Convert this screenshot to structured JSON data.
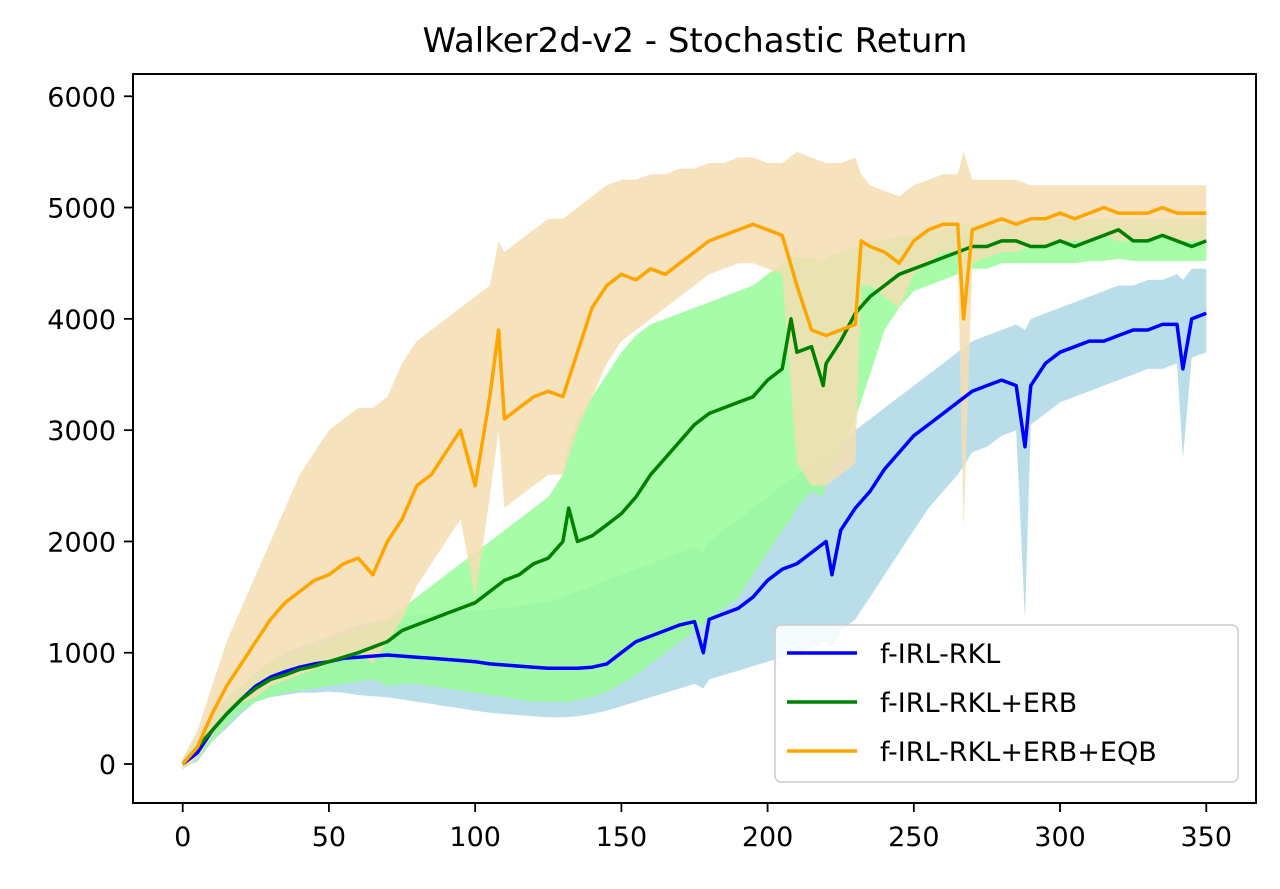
{
  "chart_data": {
    "type": "line",
    "title": "Walker2d-v2 - Stochastic Return",
    "xlabel": "",
    "ylabel": "",
    "xlim": [
      -17,
      367
    ],
    "ylim": [
      -350,
      6200
    ],
    "x_ticks": [
      0,
      50,
      100,
      150,
      200,
      250,
      300,
      350
    ],
    "x_tick_labels": [
      "0",
      "50",
      "100",
      "150",
      "200",
      "250",
      "300",
      "350"
    ],
    "y_ticks": [
      0,
      1000,
      2000,
      3000,
      4000,
      5000,
      6000
    ],
    "y_tick_labels": [
      "0",
      "1000",
      "2000",
      "3000",
      "4000",
      "5000",
      "6000"
    ],
    "grid": false,
    "legend_position": "lower-right",
    "series": [
      {
        "name": "f-IRL-RKL",
        "color": "#0000ff",
        "band_color": "#add8e6",
        "x": [
          0,
          5,
          10,
          15,
          20,
          25,
          30,
          35,
          40,
          45,
          50,
          55,
          60,
          65,
          70,
          75,
          80,
          85,
          90,
          95,
          100,
          105,
          110,
          115,
          120,
          125,
          130,
          135,
          140,
          145,
          150,
          155,
          160,
          165,
          170,
          175,
          178,
          180,
          185,
          190,
          195,
          200,
          205,
          210,
          215,
          220,
          222,
          225,
          230,
          235,
          240,
          245,
          250,
          255,
          260,
          265,
          270,
          275,
          280,
          285,
          288,
          290,
          295,
          300,
          305,
          310,
          315,
          320,
          325,
          330,
          335,
          340,
          342,
          345,
          350
        ],
        "values": [
          0,
          100,
          300,
          450,
          580,
          700,
          780,
          830,
          870,
          900,
          920,
          950,
          960,
          970,
          980,
          970,
          960,
          950,
          940,
          930,
          920,
          900,
          890,
          880,
          870,
          860,
          860,
          860,
          870,
          900,
          1000,
          1100,
          1150,
          1200,
          1250,
          1280,
          1000,
          1300,
          1350,
          1400,
          1500,
          1650,
          1750,
          1800,
          1900,
          2000,
          1700,
          2100,
          2300,
          2450,
          2650,
          2800,
          2950,
          3050,
          3150,
          3250,
          3350,
          3400,
          3450,
          3400,
          2850,
          3400,
          3600,
          3700,
          3750,
          3800,
          3800,
          3850,
          3900,
          3900,
          3950,
          3950,
          3550,
          4000,
          4050
        ],
        "lower": [
          -20,
          20,
          200,
          320,
          450,
          560,
          600,
          620,
          640,
          640,
          650,
          640,
          620,
          610,
          600,
          580,
          560,
          540,
          520,
          500,
          480,
          460,
          450,
          440,
          430,
          420,
          420,
          430,
          450,
          480,
          520,
          560,
          600,
          640,
          680,
          720,
          680,
          760,
          800,
          840,
          880,
          920,
          960,
          1000,
          1050,
          1100,
          1050,
          1200,
          1300,
          1500,
          1700,
          1900,
          2100,
          2300,
          2450,
          2600,
          2800,
          2850,
          2950,
          3000,
          1300,
          3050,
          3150,
          3250,
          3300,
          3350,
          3400,
          3450,
          3500,
          3550,
          3550,
          3600,
          2750,
          3650,
          3700
        ],
        "upper": [
          20,
          180,
          420,
          580,
          700,
          820,
          920,
          1000,
          1060,
          1100,
          1150,
          1200,
          1250,
          1280,
          1300,
          1320,
          1340,
          1350,
          1360,
          1370,
          1380,
          1390,
          1400,
          1420,
          1440,
          1460,
          1500,
          1550,
          1600,
          1650,
          1700,
          1750,
          1800,
          1850,
          1900,
          1950,
          1900,
          2000,
          2100,
          2200,
          2300,
          2400,
          2500,
          2600,
          2700,
          2800,
          2700,
          2900,
          3000,
          3100,
          3200,
          3300,
          3400,
          3500,
          3600,
          3700,
          3800,
          3850,
          3900,
          3950,
          3900,
          4000,
          4050,
          4100,
          4150,
          4200,
          4250,
          4300,
          4300,
          4350,
          4350,
          4400,
          4350,
          4450,
          4450
        ]
      },
      {
        "name": "f-IRL-RKL+ERB",
        "color": "#008000",
        "band_color": "#98fb98",
        "x": [
          0,
          5,
          10,
          15,
          20,
          25,
          30,
          35,
          40,
          45,
          50,
          55,
          60,
          65,
          70,
          75,
          80,
          85,
          90,
          95,
          100,
          105,
          110,
          115,
          120,
          125,
          130,
          132,
          135,
          140,
          145,
          150,
          155,
          160,
          165,
          170,
          175,
          180,
          185,
          190,
          195,
          200,
          205,
          208,
          210,
          215,
          219,
          220,
          225,
          230,
          235,
          240,
          245,
          250,
          255,
          260,
          265,
          270,
          275,
          280,
          285,
          290,
          295,
          300,
          305,
          310,
          315,
          320,
          325,
          330,
          335,
          340,
          345,
          350
        ],
        "values": [
          0,
          150,
          300,
          450,
          580,
          680,
          760,
          800,
          850,
          880,
          920,
          960,
          1000,
          1050,
          1100,
          1200,
          1250,
          1300,
          1350,
          1400,
          1450,
          1550,
          1650,
          1700,
          1800,
          1850,
          2000,
          2300,
          2000,
          2050,
          2150,
          2250,
          2400,
          2600,
          2750,
          2900,
          3050,
          3150,
          3200,
          3250,
          3300,
          3450,
          3550,
          4000,
          3700,
          3750,
          3400,
          3600,
          3800,
          4050,
          4200,
          4300,
          4400,
          4450,
          4500,
          4550,
          4600,
          4650,
          4650,
          4700,
          4700,
          4650,
          4650,
          4700,
          4650,
          4700,
          4750,
          4800,
          4700,
          4700,
          4750,
          4700,
          4650,
          4700
        ],
        "lower": [
          -50,
          50,
          200,
          350,
          480,
          560,
          600,
          640,
          660,
          680,
          700,
          720,
          740,
          760,
          700,
          720,
          720,
          700,
          680,
          660,
          640,
          620,
          600,
          580,
          560,
          560,
          560,
          560,
          580,
          600,
          650,
          720,
          800,
          900,
          1000,
          1100,
          1200,
          1300,
          1400,
          1500,
          1700,
          1900,
          2100,
          2200,
          2300,
          2450,
          2400,
          2550,
          2800,
          3100,
          3500,
          3900,
          4100,
          4250,
          4300,
          4350,
          4400,
          4450,
          4450,
          4500,
          4500,
          4500,
          4500,
          4500,
          4500,
          4520,
          4520,
          4540,
          4520,
          4520,
          4520,
          4520,
          4520,
          4520
        ],
        "upper": [
          50,
          250,
          450,
          600,
          700,
          800,
          900,
          950,
          1000,
          1050,
          1100,
          1150,
          1200,
          1250,
          1300,
          1400,
          1500,
          1600,
          1700,
          1800,
          1900,
          2000,
          2100,
          2200,
          2300,
          2400,
          2600,
          2900,
          3100,
          3300,
          3500,
          3700,
          3850,
          3950,
          4000,
          4050,
          4100,
          4150,
          4200,
          4250,
          4300,
          4400,
          4500,
          4550,
          4550,
          4550,
          4500,
          4550,
          4600,
          4650,
          4700,
          4700,
          4750,
          4750,
          4800,
          4800,
          4850,
          4850,
          4850,
          4850,
          4850,
          4850,
          4900,
          4900,
          4900,
          4900,
          4900,
          4900,
          4900,
          4900,
          4900,
          4900,
          4900,
          4900
        ]
      },
      {
        "name": "f-IRL-RKL+ERB+EQB",
        "color": "#ffa500",
        "band_color": "#f5deb3",
        "x": [
          0,
          5,
          10,
          15,
          20,
          25,
          30,
          35,
          40,
          45,
          50,
          55,
          60,
          65,
          70,
          75,
          80,
          85,
          90,
          95,
          100,
          105,
          108,
          110,
          115,
          120,
          125,
          130,
          135,
          140,
          145,
          150,
          155,
          160,
          165,
          170,
          175,
          180,
          185,
          190,
          195,
          200,
          205,
          210,
          215,
          220,
          225,
          230,
          232,
          235,
          240,
          245,
          250,
          255,
          260,
          265,
          267,
          270,
          275,
          280,
          285,
          290,
          295,
          300,
          305,
          310,
          315,
          320,
          325,
          330,
          335,
          340,
          345,
          350
        ],
        "values": [
          0,
          150,
          450,
          700,
          900,
          1100,
          1300,
          1450,
          1550,
          1650,
          1700,
          1800,
          1850,
          1700,
          2000,
          2200,
          2500,
          2600,
          2800,
          3000,
          2500,
          3300,
          3900,
          3100,
          3200,
          3300,
          3350,
          3300,
          3700,
          4100,
          4300,
          4400,
          4350,
          4450,
          4400,
          4500,
          4600,
          4700,
          4750,
          4800,
          4850,
          4800,
          4750,
          4300,
          3900,
          3850,
          3900,
          3950,
          4700,
          4650,
          4600,
          4500,
          4700,
          4800,
          4850,
          4850,
          4000,
          4800,
          4850,
          4900,
          4850,
          4900,
          4900,
          4950,
          4900,
          4950,
          5000,
          4950,
          4950,
          4950,
          5000,
          4950,
          4950,
          4950
        ],
        "lower": [
          -50,
          50,
          250,
          450,
          550,
          600,
          700,
          750,
          800,
          850,
          900,
          950,
          1000,
          900,
          1100,
          1300,
          1600,
          1800,
          2000,
          2200,
          1500,
          2400,
          3000,
          2300,
          2400,
          2500,
          2600,
          2600,
          3000,
          3300,
          3600,
          3800,
          3900,
          4000,
          4100,
          4200,
          4300,
          4400,
          4450,
          4500,
          4500,
          4450,
          4400,
          2700,
          2500,
          2500,
          2600,
          2700,
          4300,
          4300,
          4200,
          4100,
          4400,
          4500,
          4600,
          4600,
          2100,
          4500,
          4550,
          4600,
          4600,
          4650,
          4650,
          4700,
          4700,
          4700,
          4750,
          4700,
          4700,
          4700,
          4750,
          4700,
          4700,
          4700
        ],
        "upper": [
          50,
          300,
          700,
          1100,
          1400,
          1700,
          2000,
          2300,
          2600,
          2800,
          3000,
          3100,
          3200,
          3200,
          3300,
          3600,
          3800,
          3900,
          4000,
          4100,
          4200,
          4300,
          4700,
          4600,
          4700,
          4800,
          4900,
          4900,
          5000,
          5100,
          5200,
          5250,
          5250,
          5300,
          5300,
          5350,
          5350,
          5400,
          5400,
          5450,
          5450,
          5400,
          5400,
          5500,
          5450,
          5400,
          5400,
          5450,
          5300,
          5200,
          5150,
          5100,
          5200,
          5250,
          5300,
          5300,
          5500,
          5250,
          5250,
          5250,
          5250,
          5200,
          5200,
          5200,
          5200,
          5200,
          5200,
          5200,
          5200,
          5200,
          5200,
          5200,
          5200,
          5200
        ]
      }
    ]
  }
}
